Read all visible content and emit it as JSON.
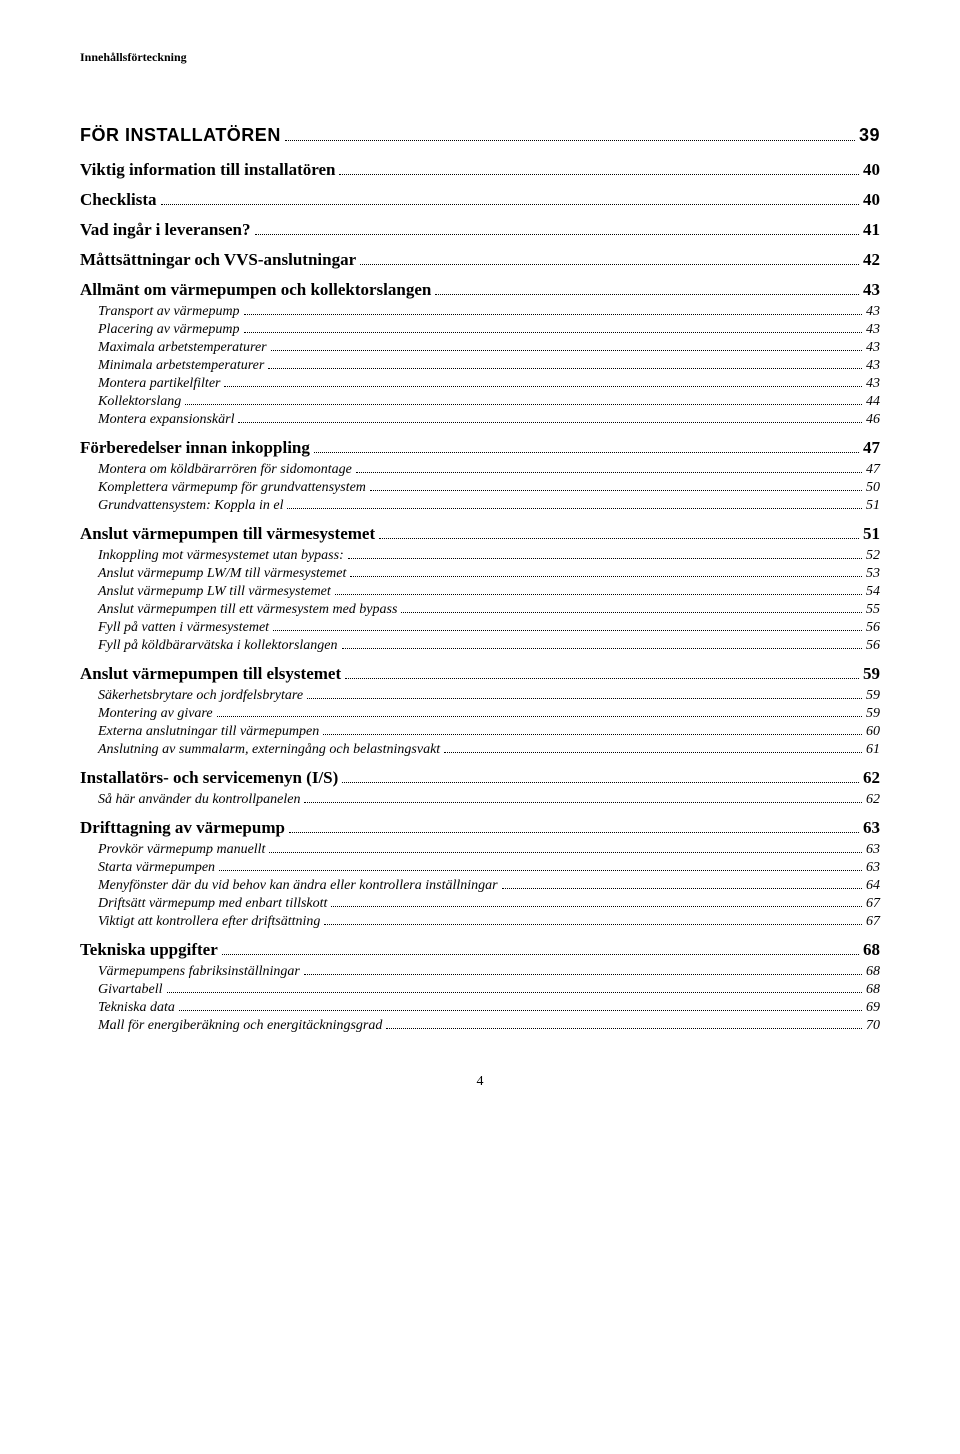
{
  "header": "Innehållsförteckning",
  "footer": "4",
  "toc": [
    {
      "type": "section",
      "label": "FÖR INSTALLATÖREN",
      "page": "39"
    },
    {
      "type": "heading",
      "label": "Viktig information till installatören",
      "page": "40"
    },
    {
      "type": "heading",
      "label": "Checklista",
      "page": "40"
    },
    {
      "type": "heading",
      "label": "Vad ingår i leveransen?",
      "page": "41"
    },
    {
      "type": "heading",
      "label": "Måttsättningar och VVS-anslutningar",
      "page": "42"
    },
    {
      "type": "heading",
      "label": "Allmänt om värmepumpen och kollektorslangen",
      "page": "43"
    },
    {
      "type": "item",
      "label": "Transport av värmepump",
      "page": "43"
    },
    {
      "type": "item",
      "label": "Placering av värmepump",
      "page": "43"
    },
    {
      "type": "item",
      "label": "Maximala arbetstemperaturer",
      "page": "43"
    },
    {
      "type": "item",
      "label": "Minimala arbetstemperaturer",
      "page": "43"
    },
    {
      "type": "item",
      "label": "Montera partikelfilter",
      "page": "43"
    },
    {
      "type": "item",
      "label": "Kollektorslang",
      "page": "44"
    },
    {
      "type": "item",
      "label": "Montera expansionskärl",
      "page": "46"
    },
    {
      "type": "heading",
      "label": "Förberedelser innan inkoppling",
      "page": "47"
    },
    {
      "type": "item",
      "label": "Montera om köldbärarrören för sidomontage",
      "page": "47"
    },
    {
      "type": "item",
      "label": "Komplettera värmepump för grundvattensystem",
      "page": "50"
    },
    {
      "type": "item",
      "label": "Grundvattensystem: Koppla in el",
      "page": "51"
    },
    {
      "type": "heading",
      "label": "Anslut värmepumpen till värmesystemet",
      "page": "51"
    },
    {
      "type": "item",
      "label": "Inkoppling mot värmesystemet utan bypass:",
      "page": "52"
    },
    {
      "type": "item",
      "label": "Anslut värmepump LW/M till värmesystemet",
      "page": "53"
    },
    {
      "type": "item",
      "label": "Anslut värmepump LW till värmesystemet",
      "page": "54"
    },
    {
      "type": "item",
      "label": "Anslut värmepumpen till ett värmesystem med bypass",
      "page": "55"
    },
    {
      "type": "item",
      "label": "Fyll på vatten i värmesystemet",
      "page": "56"
    },
    {
      "type": "item",
      "label": "Fyll på köldbärarvätska i kollektorslangen",
      "page": "56"
    },
    {
      "type": "heading",
      "label": "Anslut värmepumpen till elsystemet",
      "page": "59"
    },
    {
      "type": "item",
      "label": "Säkerhetsbrytare och jordfelsbrytare",
      "page": "59"
    },
    {
      "type": "item",
      "label": "Montering av givare",
      "page": "59"
    },
    {
      "type": "item",
      "label": "Externa anslutningar till värmepumpen",
      "page": "60"
    },
    {
      "type": "item",
      "label": "Anslutning av summalarm, externingång och belastningsvakt",
      "page": "61"
    },
    {
      "type": "heading",
      "label": "Installatörs- och servicemenyn (I/S)",
      "page": "62"
    },
    {
      "type": "item",
      "label": "Så här använder du kontrollpanelen",
      "page": "62"
    },
    {
      "type": "heading",
      "label": "Drifttagning av värmepump",
      "page": "63"
    },
    {
      "type": "item",
      "label": "Provkör värmepump manuellt",
      "page": "63"
    },
    {
      "type": "item",
      "label": "Starta värmepumpen",
      "page": "63"
    },
    {
      "type": "item",
      "label": "Menyfönster där du vid behov kan ändra eller kontrollera inställningar",
      "page": "64"
    },
    {
      "type": "item",
      "label": "Driftsätt värmepump med enbart tillskott",
      "page": "67"
    },
    {
      "type": "item",
      "label": "Viktigt att kontrollera efter driftsättning",
      "page": "67"
    },
    {
      "type": "heading",
      "label": "Tekniska uppgifter",
      "page": "68"
    },
    {
      "type": "item",
      "label": "Värmepumpens fabriksinställningar",
      "page": "68"
    },
    {
      "type": "item",
      "label": "Givartabell",
      "page": "68"
    },
    {
      "type": "item",
      "label": "Tekniska data",
      "page": "69"
    },
    {
      "type": "item",
      "label": "Mall för energiberäkning och energitäckningsgrad",
      "page": "70"
    }
  ]
}
